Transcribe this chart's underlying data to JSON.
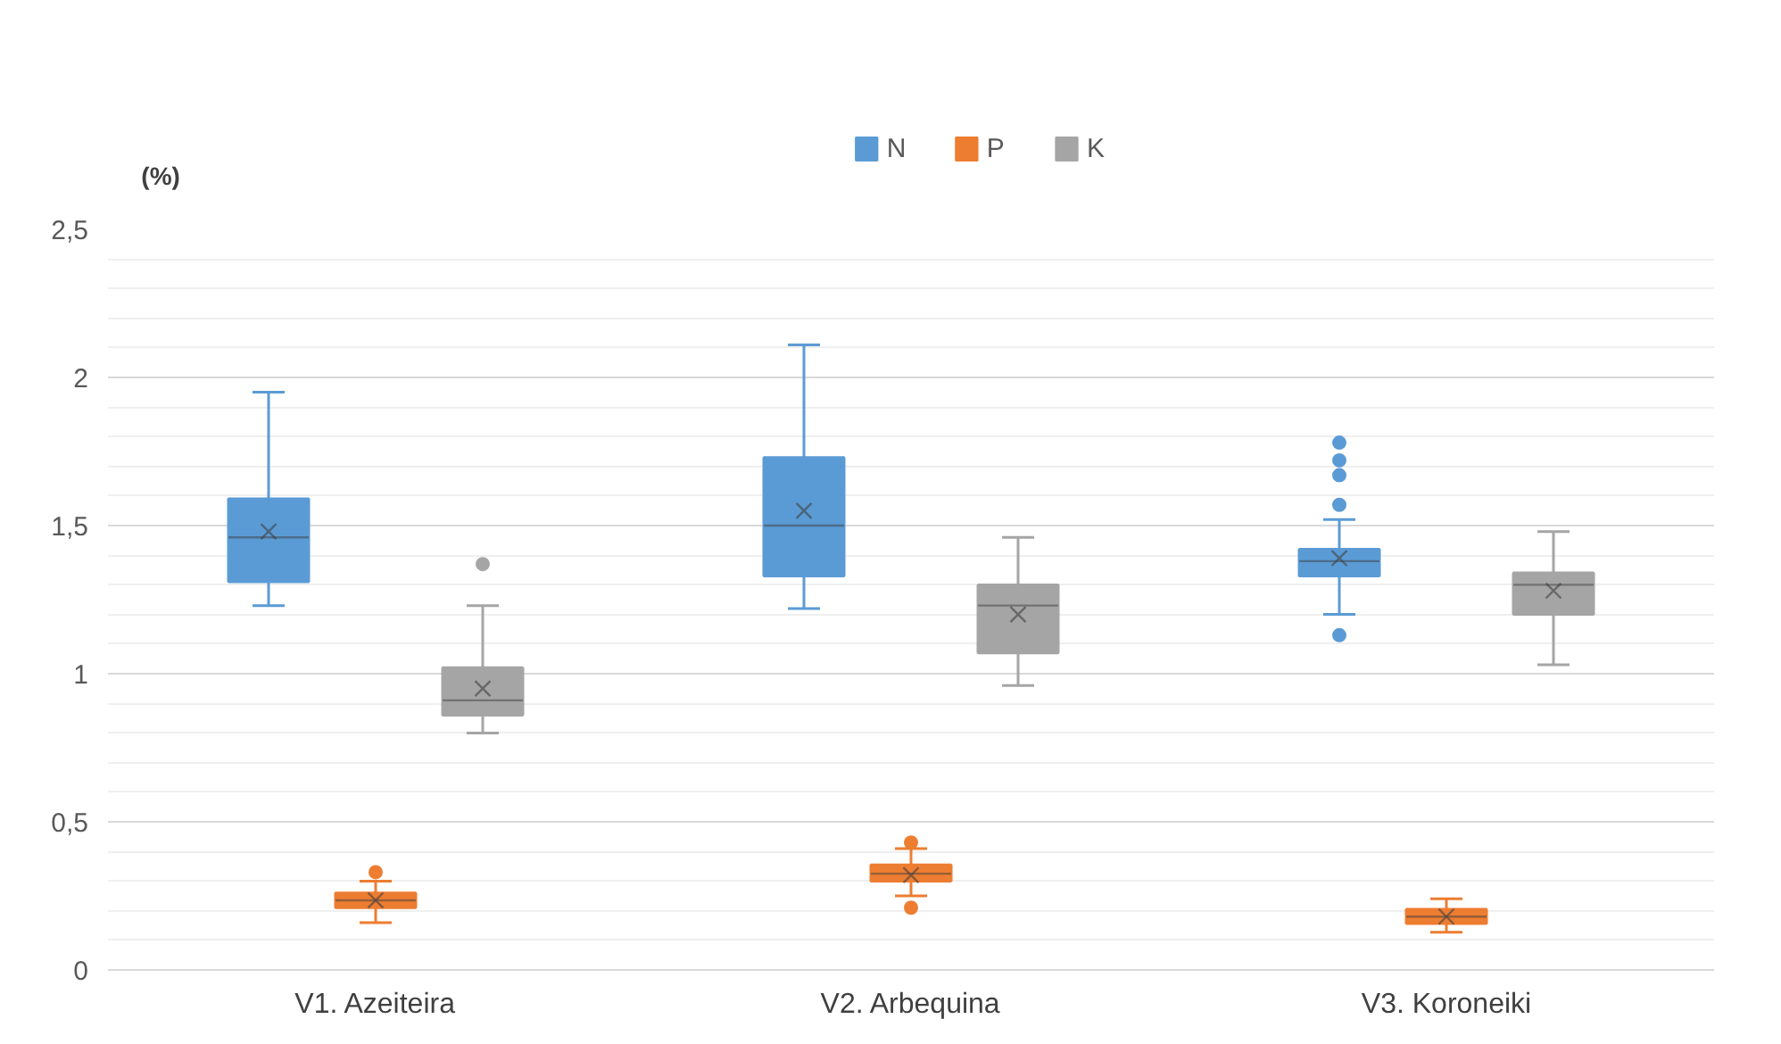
{
  "chart_data": {
    "type": "box",
    "ylabel": "(%)",
    "categories": [
      "V1. Azeiteira",
      "V2. Arbequina",
      "V3. Koroneiki"
    ],
    "ylim": [
      0,
      2.5
    ],
    "yticks": [
      {
        "value": 0,
        "label": "0"
      },
      {
        "value": 0.5,
        "label": "0,5"
      },
      {
        "value": 1,
        "label": "1"
      },
      {
        "value": 1.5,
        "label": "1,5"
      },
      {
        "value": 2,
        "label": "2"
      },
      {
        "value": 2.5,
        "label": "2,5"
      }
    ],
    "grid": "y",
    "legend": "top",
    "marker": "circle",
    "series": [
      {
        "name": "N",
        "color": "#5b9bd5",
        "boxes": [
          {
            "low": 1.23,
            "q1": 1.31,
            "median": 1.46,
            "q3": 1.59,
            "high": 1.95,
            "mean": 1.48
          },
          {
            "low": 1.22,
            "q1": 1.33,
            "median": 1.5,
            "q3": 1.73,
            "high": 2.11,
            "mean": 1.55
          },
          {
            "low": 1.2,
            "q1": 1.33,
            "median": 1.38,
            "q3": 1.42,
            "high": 1.52,
            "mean": 1.39,
            "outliers": [
              1.78,
              1.72,
              1.67,
              1.57,
              1.13
            ]
          }
        ]
      },
      {
        "name": "P",
        "color": "#ed7d31",
        "boxes": [
          {
            "low": 0.16,
            "q1": 0.21,
            "median": 0.235,
            "q3": 0.26,
            "high": 0.3,
            "mean": 0.235,
            "outliers": [
              0.33
            ]
          },
          {
            "low": 0.25,
            "q1": 0.3,
            "median": 0.325,
            "q3": 0.355,
            "high": 0.41,
            "mean": 0.32,
            "outliers": [
              0.43,
              0.21
            ]
          },
          {
            "low": 0.127,
            "q1": 0.157,
            "median": 0.18,
            "q3": 0.205,
            "high": 0.24,
            "mean": 0.18
          }
        ]
      },
      {
        "name": "K",
        "color": "#a5a5a5",
        "boxes": [
          {
            "low": 0.8,
            "q1": 0.86,
            "median": 0.91,
            "q3": 1.02,
            "high": 1.23,
            "mean": 0.95,
            "outliers": [
              1.37
            ]
          },
          {
            "low": 0.96,
            "q1": 1.07,
            "median": 1.23,
            "q3": 1.3,
            "high": 1.46,
            "mean": 1.2
          },
          {
            "low": 1.03,
            "q1": 1.2,
            "median": 1.3,
            "q3": 1.34,
            "high": 1.48,
            "mean": 1.28
          }
        ]
      }
    ]
  }
}
